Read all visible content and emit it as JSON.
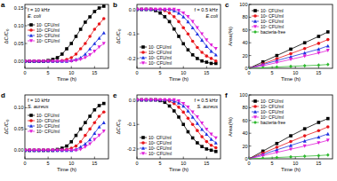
{
  "chart_data": [
    {
      "type": "line",
      "title": "a",
      "annotations": [
        "f = 10 kHz",
        "E. coli"
      ],
      "x_label": "Time (h)",
      "y_label": "ΔC/C₀",
      "x": [
        0,
        1,
        2,
        3,
        4,
        5,
        6,
        7,
        8,
        9,
        10,
        11,
        12,
        13,
        14,
        15,
        16,
        17
      ],
      "xlim": [
        0,
        18
      ],
      "xticks": [
        0,
        5,
        10,
        15
      ],
      "ylim": [
        -0.02,
        0.16
      ],
      "yticks": [
        {
          "value": 0,
          "label": "0.00"
        },
        0.05,
        {
          "value": 0.1,
          "label": "0.10"
        },
        0.15
      ],
      "legend": "upper left",
      "series": [
        {
          "name": "10⁷ CFU/ml",
          "color": "#000000",
          "marker": "square",
          "values": [
            0,
            0,
            0,
            0,
            0,
            0.002,
            0.005,
            0.01,
            0.02,
            0.035,
            0.05,
            0.07,
            0.09,
            0.11,
            0.125,
            0.14,
            0.15,
            0.155
          ]
        },
        {
          "name": "10⁶ CFU/ml",
          "color": "#e8161b",
          "marker": "circle",
          "values": [
            0,
            0,
            0,
            0,
            0,
            0,
            0,
            0,
            0.002,
            0.005,
            0.01,
            0.02,
            0.035,
            0.05,
            0.07,
            0.09,
            0.105,
            0.12
          ]
        },
        {
          "name": "10⁵ CFU/ml",
          "color": "#1f33e0",
          "marker": "triangle",
          "values": [
            0,
            0,
            0,
            0,
            0,
            0,
            0,
            0,
            0,
            0,
            0.002,
            0.005,
            0.01,
            0.02,
            0.035,
            0.05,
            0.065,
            0.08
          ]
        },
        {
          "name": "10⁴ CFU/ml",
          "color": "#e01fd8",
          "marker": "triangle-down",
          "values": [
            0,
            0,
            0,
            0,
            0,
            0,
            0,
            0,
            0,
            0,
            0,
            0.002,
            0.005,
            0.01,
            0.018,
            0.028,
            0.04,
            0.05
          ]
        }
      ]
    },
    {
      "type": "line",
      "title": "b",
      "annotations": [
        "f = 0.5 kHz",
        "E.coli"
      ],
      "x_label": "Time (h)",
      "y_label": "ΔC/C₀",
      "x": [
        0,
        1,
        2,
        3,
        4,
        5,
        6,
        7,
        8,
        9,
        10,
        11,
        12,
        13,
        14,
        15,
        16,
        17
      ],
      "xlim": [
        0,
        18
      ],
      "xticks": [
        0,
        5,
        10,
        15
      ],
      "ylim": [
        -0.24,
        0.02
      ],
      "yticks": [
        {
          "value": 0,
          "label": "0.0"
        },
        -0.1,
        -0.2
      ],
      "legend": "lower left",
      "series": [
        {
          "name": "10⁷ CFU/ml",
          "color": "#000000",
          "marker": "square",
          "values": [
            0,
            0,
            0,
            0,
            -0.005,
            -0.015,
            -0.03,
            -0.05,
            -0.08,
            -0.11,
            -0.14,
            -0.165,
            -0.185,
            -0.2,
            -0.21,
            -0.215,
            -0.22,
            -0.22
          ]
        },
        {
          "name": "10⁶ CFU/ml",
          "color": "#e8161b",
          "marker": "circle",
          "values": [
            0,
            0,
            0,
            0,
            0,
            0,
            -0.005,
            -0.015,
            -0.03,
            -0.05,
            -0.075,
            -0.1,
            -0.13,
            -0.155,
            -0.175,
            -0.19,
            -0.2,
            -0.21
          ]
        },
        {
          "name": "10⁵ CFU/ml",
          "color": "#1f33e0",
          "marker": "triangle",
          "values": [
            0,
            0,
            0,
            0,
            0,
            0,
            0,
            0,
            -0.005,
            -0.015,
            -0.03,
            -0.05,
            -0.075,
            -0.1,
            -0.125,
            -0.15,
            -0.17,
            -0.185
          ]
        },
        {
          "name": "10⁴ CFU/ml",
          "color": "#e01fd8",
          "marker": "triangle-down",
          "values": [
            0,
            0,
            0,
            0,
            0,
            0,
            0,
            0,
            0,
            -0.005,
            -0.015,
            -0.03,
            -0.05,
            -0.075,
            -0.1,
            -0.125,
            -0.145,
            -0.16
          ]
        }
      ]
    },
    {
      "type": "line",
      "title": "c",
      "x_label": "Time (h)",
      "y_label": "Area(%)",
      "x": [
        0,
        3,
        6,
        9,
        12,
        15,
        17
      ],
      "xlim": [
        0,
        18
      ],
      "xticks": [
        0,
        5,
        10,
        15
      ],
      "ylim": [
        0,
        100
      ],
      "yticks": [
        0,
        20,
        40,
        60,
        80,
        100
      ],
      "legend": "upper left",
      "series": [
        {
          "name": "10⁷ CFU/ml",
          "color": "#000000",
          "marker": "square",
          "values": [
            0,
            10,
            20,
            30,
            40,
            50,
            57
          ]
        },
        {
          "name": "10⁶ CFU/ml",
          "color": "#e8161b",
          "marker": "circle",
          "values": [
            0,
            7,
            15,
            23,
            31,
            39,
            45
          ]
        },
        {
          "name": "10⁵ CFU/ml",
          "color": "#1f33e0",
          "marker": "triangle",
          "values": [
            0,
            6,
            12,
            18,
            24,
            30,
            35
          ]
        },
        {
          "name": "10⁴ CFU/ml",
          "color": "#e01fd8",
          "marker": "triangle-down",
          "values": [
            0,
            4,
            9,
            14,
            19,
            24,
            28
          ]
        },
        {
          "name": "bacteria-free",
          "color": "#2db82d",
          "marker": "diamond",
          "values": [
            0,
            1,
            2,
            3,
            4,
            5,
            6
          ]
        }
      ]
    },
    {
      "type": "line",
      "title": "d",
      "annotations": [
        "f = 10 kHz",
        "S. aureus"
      ],
      "x_label": "Time (h)",
      "y_label": "ΔC/C₀",
      "x": [
        0,
        1,
        2,
        3,
        4,
        5,
        6,
        7,
        8,
        9,
        10,
        11,
        12,
        13,
        14,
        15,
        16,
        17
      ],
      "xlim": [
        0,
        18
      ],
      "xticks": [
        0,
        5,
        10,
        15
      ],
      "ylim": [
        -0.02,
        0.13
      ],
      "yticks": [
        {
          "value": 0,
          "label": "0.00"
        },
        0.05,
        {
          "value": 0.1,
          "label": "0.10"
        }
      ],
      "legend": "upper left",
      "series": [
        {
          "name": "10⁷ CFU/ml",
          "color": "#000000",
          "marker": "square",
          "values": [
            0,
            0,
            0,
            0,
            0,
            0,
            0,
            0.002,
            0.005,
            0.01,
            0.02,
            0.035,
            0.05,
            0.065,
            0.08,
            0.095,
            0.105,
            0.11
          ]
        },
        {
          "name": "10⁶ CFU/ml",
          "color": "#e8161b",
          "marker": "circle",
          "values": [
            0,
            0,
            0,
            0,
            0,
            0,
            0,
            0,
            0,
            0.002,
            0.005,
            0.01,
            0.02,
            0.035,
            0.05,
            0.065,
            0.08,
            0.09
          ]
        },
        {
          "name": "10⁵ CFU/ml",
          "color": "#1f33e0",
          "marker": "triangle",
          "values": [
            0,
            0,
            0,
            0,
            0,
            0,
            0,
            0,
            0,
            0,
            0,
            0.002,
            0.008,
            0.015,
            0.025,
            0.04,
            0.055,
            0.065
          ]
        },
        {
          "name": "10⁴ CFU/ml",
          "color": "#e01fd8",
          "marker": "triangle-down",
          "values": [
            0,
            0,
            0,
            0,
            0,
            0,
            0,
            0,
            0,
            0,
            0,
            0,
            0.002,
            0.008,
            0.015,
            0.025,
            0.035,
            0.045
          ]
        }
      ]
    },
    {
      "type": "line",
      "title": "e",
      "annotations": [
        "f = 0.5 kHz",
        "S. aureus"
      ],
      "x_label": "Time (h)",
      "y_label": "ΔC/C₀",
      "x": [
        0,
        1,
        2,
        3,
        4,
        5,
        6,
        7,
        8,
        9,
        10,
        11,
        12,
        13,
        14,
        15,
        16,
        17
      ],
      "xlim": [
        0,
        18
      ],
      "xticks": [
        0,
        5,
        10,
        15
      ],
      "ylim": [
        -0.24,
        0.02
      ],
      "yticks": [
        {
          "value": 0,
          "label": "0.0"
        },
        -0.1,
        -0.2
      ],
      "legend": "lower left",
      "series": [
        {
          "name": "10⁷ CFU/ml",
          "color": "#000000",
          "marker": "square",
          "values": [
            0,
            0,
            0,
            0,
            0,
            -0.003,
            -0.01,
            -0.025,
            -0.045,
            -0.07,
            -0.1,
            -0.13,
            -0.155,
            -0.175,
            -0.19,
            -0.2,
            -0.205,
            -0.21
          ]
        },
        {
          "name": "10⁶ CFU/ml",
          "color": "#e8161b",
          "marker": "circle",
          "values": [
            0,
            0,
            0,
            0,
            0,
            0,
            0,
            -0.005,
            -0.015,
            -0.03,
            -0.05,
            -0.075,
            -0.1,
            -0.125,
            -0.15,
            -0.17,
            -0.185,
            -0.195
          ]
        },
        {
          "name": "10⁵ CFU/ml",
          "color": "#1f33e0",
          "marker": "triangle",
          "values": [
            0,
            0,
            0,
            0,
            0,
            0,
            0,
            0,
            -0.005,
            -0.012,
            -0.025,
            -0.045,
            -0.07,
            -0.095,
            -0.12,
            -0.14,
            -0.16,
            -0.175
          ]
        },
        {
          "name": "10⁴ CFU/ml",
          "color": "#e01fd8",
          "marker": "triangle-down",
          "values": [
            0,
            0,
            0,
            0,
            0,
            0,
            0,
            0,
            0,
            -0.005,
            -0.015,
            -0.03,
            -0.05,
            -0.07,
            -0.095,
            -0.12,
            -0.14,
            -0.155
          ]
        }
      ]
    },
    {
      "type": "line",
      "title": "f",
      "x_label": "Time (h)",
      "y_label": "Area(%)",
      "x": [
        0,
        3,
        6,
        9,
        12,
        15,
        17
      ],
      "xlim": [
        0,
        18
      ],
      "xticks": [
        0,
        5,
        10,
        15
      ],
      "ylim": [
        0,
        100
      ],
      "yticks": [
        0,
        20,
        40,
        60,
        80,
        100
      ],
      "legend": "upper left",
      "series": [
        {
          "name": "10⁷ CFU/ml",
          "color": "#000000",
          "marker": "square",
          "values": [
            0,
            12,
            24,
            36,
            47,
            57,
            63
          ]
        },
        {
          "name": "10⁶ CFU/ml",
          "color": "#e8161b",
          "marker": "circle",
          "values": [
            0,
            9,
            18,
            27,
            36,
            44,
            50
          ]
        },
        {
          "name": "10⁵ CFU/ml",
          "color": "#1f33e0",
          "marker": "triangle",
          "values": [
            0,
            7,
            14,
            21,
            28,
            34,
            39
          ]
        },
        {
          "name": "10⁴ CFU/ml",
          "color": "#e01fd8",
          "marker": "triangle-down",
          "values": [
            0,
            5,
            10,
            15,
            20,
            25,
            29
          ]
        },
        {
          "name": "bacteria-free",
          "color": "#2db82d",
          "marker": "diamond",
          "values": [
            0,
            1,
            2,
            3,
            4,
            5,
            6
          ]
        }
      ]
    }
  ]
}
